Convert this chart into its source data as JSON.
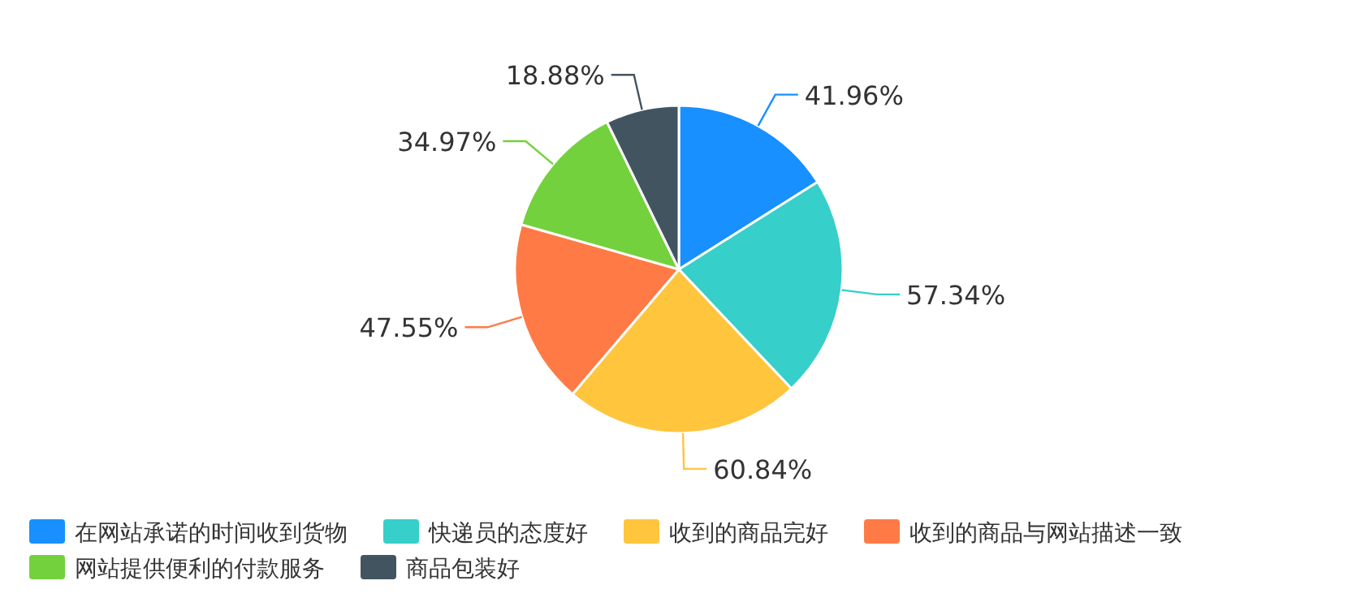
{
  "chart_data": {
    "type": "pie",
    "categories": [
      "在网站承诺的时间收到货物",
      "快递员的态度好",
      "收到的商品完好",
      "收到的商品与网站描述一致",
      "网站提供便利的付款服务",
      "商品包装好"
    ],
    "values": [
      41.96,
      57.34,
      60.84,
      47.55,
      34.97,
      18.88
    ],
    "value_labels": [
      "41.96%",
      "57.34%",
      "60.84%",
      "47.55%",
      "34.97%",
      "18.88%"
    ],
    "colors": [
      "#1890ff",
      "#36cfc9",
      "#ffc53d",
      "#ff7a45",
      "#73d13d",
      "#435461"
    ],
    "legend": "bottom"
  }
}
